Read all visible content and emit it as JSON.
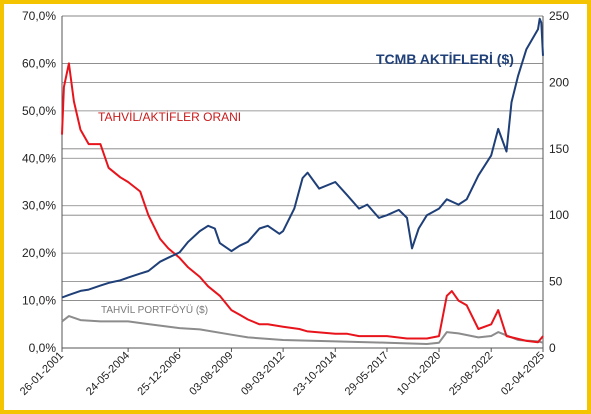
{
  "chart_data": {
    "type": "line",
    "grid": true,
    "left_axis": {
      "ylim": [
        0,
        70
      ],
      "ticks": [
        0,
        10,
        20,
        30,
        40,
        50,
        60,
        70
      ],
      "tick_labels": [
        "0,0%",
        "10,0%",
        "20,0%",
        "30,0%",
        "40,0%",
        "50,0%",
        "60,0%",
        "70,0%"
      ]
    },
    "right_axis": {
      "ylim": [
        0,
        250
      ],
      "ticks": [
        0,
        50,
        100,
        150,
        200,
        250
      ],
      "tick_labels": [
        "0",
        "50",
        "100",
        "150",
        "200",
        "250"
      ]
    },
    "x_axis": {
      "range": [
        "2001-01-26",
        "2025-04-02"
      ],
      "tick_dates": [
        "2001-01-26",
        "2004-05-24",
        "2006-12-25",
        "2009-08-03",
        "2012-03-09",
        "2014-10-23",
        "2017-05-29",
        "2020-01-10",
        "2022-08-25",
        "2025-04-02"
      ],
      "tick_labels": [
        "26-01-2001",
        "24-05-2004",
        "25-12-2006",
        "03-08-2009",
        "09-03-2012",
        "23-10-2014",
        "29-05-2017",
        "10-01-2020",
        "25-08-2022",
        "02-04-2025"
      ]
    },
    "annotations": {
      "tcmb": "TCMB AKTİFLERİ ($)",
      "ratio": "TAHVİL/AKTİFLER ORANI",
      "portfolio": "TAHVİL PORTFÖYÜ ($)"
    },
    "series": [
      {
        "name": "TCMB AKTİFLERİ ($)",
        "axis": "right",
        "color": "#1f3f78",
        "points": [
          [
            "2001-01-26",
            38
          ],
          [
            "2001-06-01",
            40
          ],
          [
            "2002-01-01",
            43
          ],
          [
            "2002-06-01",
            44
          ],
          [
            "2003-01-01",
            47
          ],
          [
            "2003-06-01",
            49
          ],
          [
            "2004-01-01",
            51
          ],
          [
            "2004-05-24",
            53
          ],
          [
            "2005-01-01",
            56
          ],
          [
            "2005-06-01",
            58
          ],
          [
            "2006-01-01",
            65
          ],
          [
            "2006-06-01",
            68
          ],
          [
            "2006-12-25",
            72
          ],
          [
            "2007-06-01",
            80
          ],
          [
            "2008-01-01",
            88
          ],
          [
            "2008-06-01",
            92
          ],
          [
            "2008-10-01",
            90
          ],
          [
            "2009-01-01",
            79
          ],
          [
            "2009-08-03",
            73
          ],
          [
            "2010-01-01",
            77
          ],
          [
            "2010-06-01",
            80
          ],
          [
            "2011-01-01",
            90
          ],
          [
            "2011-06-01",
            92
          ],
          [
            "2012-01-01",
            86
          ],
          [
            "2012-03-09",
            88
          ],
          [
            "2012-10-01",
            105
          ],
          [
            "2013-03-01",
            128
          ],
          [
            "2013-06-01",
            132
          ],
          [
            "2014-01-01",
            120
          ],
          [
            "2014-10-23",
            125
          ],
          [
            "2015-06-01",
            115
          ],
          [
            "2016-01-01",
            105
          ],
          [
            "2016-06-01",
            108
          ],
          [
            "2017-01-01",
            98
          ],
          [
            "2017-05-29",
            100
          ],
          [
            "2018-01-01",
            104
          ],
          [
            "2018-06-01",
            98
          ],
          [
            "2018-09-01",
            75
          ],
          [
            "2019-01-01",
            90
          ],
          [
            "2019-06-01",
            100
          ],
          [
            "2020-01-10",
            105
          ],
          [
            "2020-06-01",
            112
          ],
          [
            "2021-01-01",
            108
          ],
          [
            "2021-06-01",
            112
          ],
          [
            "2022-01-01",
            130
          ],
          [
            "2022-08-25",
            145
          ],
          [
            "2023-01-01",
            165
          ],
          [
            "2023-06-01",
            148
          ],
          [
            "2023-09-01",
            185
          ],
          [
            "2024-01-01",
            205
          ],
          [
            "2024-06-01",
            225
          ],
          [
            "2025-01-01",
            240
          ],
          [
            "2025-02-01",
            248
          ],
          [
            "2025-03-01",
            245
          ],
          [
            "2025-04-02",
            220
          ]
        ]
      },
      {
        "name": "TAHVİL/AKTİFLER ORANI",
        "axis": "left",
        "color": "#e8141c",
        "points": [
          [
            "2001-01-26",
            45
          ],
          [
            "2001-03-01",
            55
          ],
          [
            "2001-06-01",
            60
          ],
          [
            "2001-09-01",
            52
          ],
          [
            "2002-01-01",
            46
          ],
          [
            "2002-06-01",
            43
          ],
          [
            "2003-01-01",
            43
          ],
          [
            "2003-06-01",
            38
          ],
          [
            "2004-01-01",
            36
          ],
          [
            "2004-05-24",
            35
          ],
          [
            "2005-01-01",
            33
          ],
          [
            "2005-06-01",
            28
          ],
          [
            "2006-01-01",
            23
          ],
          [
            "2006-06-01",
            21
          ],
          [
            "2006-12-25",
            19
          ],
          [
            "2007-06-01",
            17
          ],
          [
            "2008-01-01",
            15
          ],
          [
            "2008-06-01",
            13
          ],
          [
            "2009-01-01",
            11
          ],
          [
            "2009-08-03",
            8
          ],
          [
            "2010-01-01",
            7
          ],
          [
            "2010-06-01",
            6
          ],
          [
            "2011-01-01",
            5
          ],
          [
            "2011-06-01",
            5
          ],
          [
            "2012-03-09",
            4.5
          ],
          [
            "2013-01-01",
            4
          ],
          [
            "2013-06-01",
            3.5
          ],
          [
            "2014-10-23",
            3
          ],
          [
            "2015-06-01",
            3
          ],
          [
            "2016-01-01",
            2.5
          ],
          [
            "2017-05-29",
            2.5
          ],
          [
            "2018-06-01",
            2
          ],
          [
            "2019-06-01",
            2
          ],
          [
            "2020-01-10",
            2.5
          ],
          [
            "2020-06-01",
            11
          ],
          [
            "2020-09-01",
            12
          ],
          [
            "2021-01-01",
            10
          ],
          [
            "2021-06-01",
            9
          ],
          [
            "2022-01-01",
            4
          ],
          [
            "2022-08-25",
            5
          ],
          [
            "2023-01-01",
            8
          ],
          [
            "2023-06-01",
            2.5
          ],
          [
            "2024-06-01",
            1.5
          ],
          [
            "2025-01-01",
            1.2
          ],
          [
            "2025-04-02",
            2.5
          ]
        ]
      },
      {
        "name": "TAHVİL PORTFÖYÜ ($)",
        "axis": "right",
        "color": "#8c8c8c",
        "points": [
          [
            "2001-01-26",
            20
          ],
          [
            "2001-06-01",
            24
          ],
          [
            "2002-01-01",
            21
          ],
          [
            "2003-01-01",
            20
          ],
          [
            "2004-05-24",
            20
          ],
          [
            "2005-06-01",
            18
          ],
          [
            "2006-12-25",
            15
          ],
          [
            "2008-01-01",
            14
          ],
          [
            "2009-08-03",
            10
          ],
          [
            "2010-06-01",
            8
          ],
          [
            "2012-03-09",
            6
          ],
          [
            "2014-10-23",
            5
          ],
          [
            "2017-05-29",
            4
          ],
          [
            "2019-06-01",
            3
          ],
          [
            "2020-01-10",
            4
          ],
          [
            "2020-06-01",
            12
          ],
          [
            "2021-01-01",
            11
          ],
          [
            "2022-01-01",
            8
          ],
          [
            "2022-08-25",
            9
          ],
          [
            "2023-01-01",
            12
          ],
          [
            "2024-01-01",
            6
          ],
          [
            "2025-01-01",
            5
          ],
          [
            "2025-04-02",
            4
          ]
        ]
      }
    ]
  }
}
